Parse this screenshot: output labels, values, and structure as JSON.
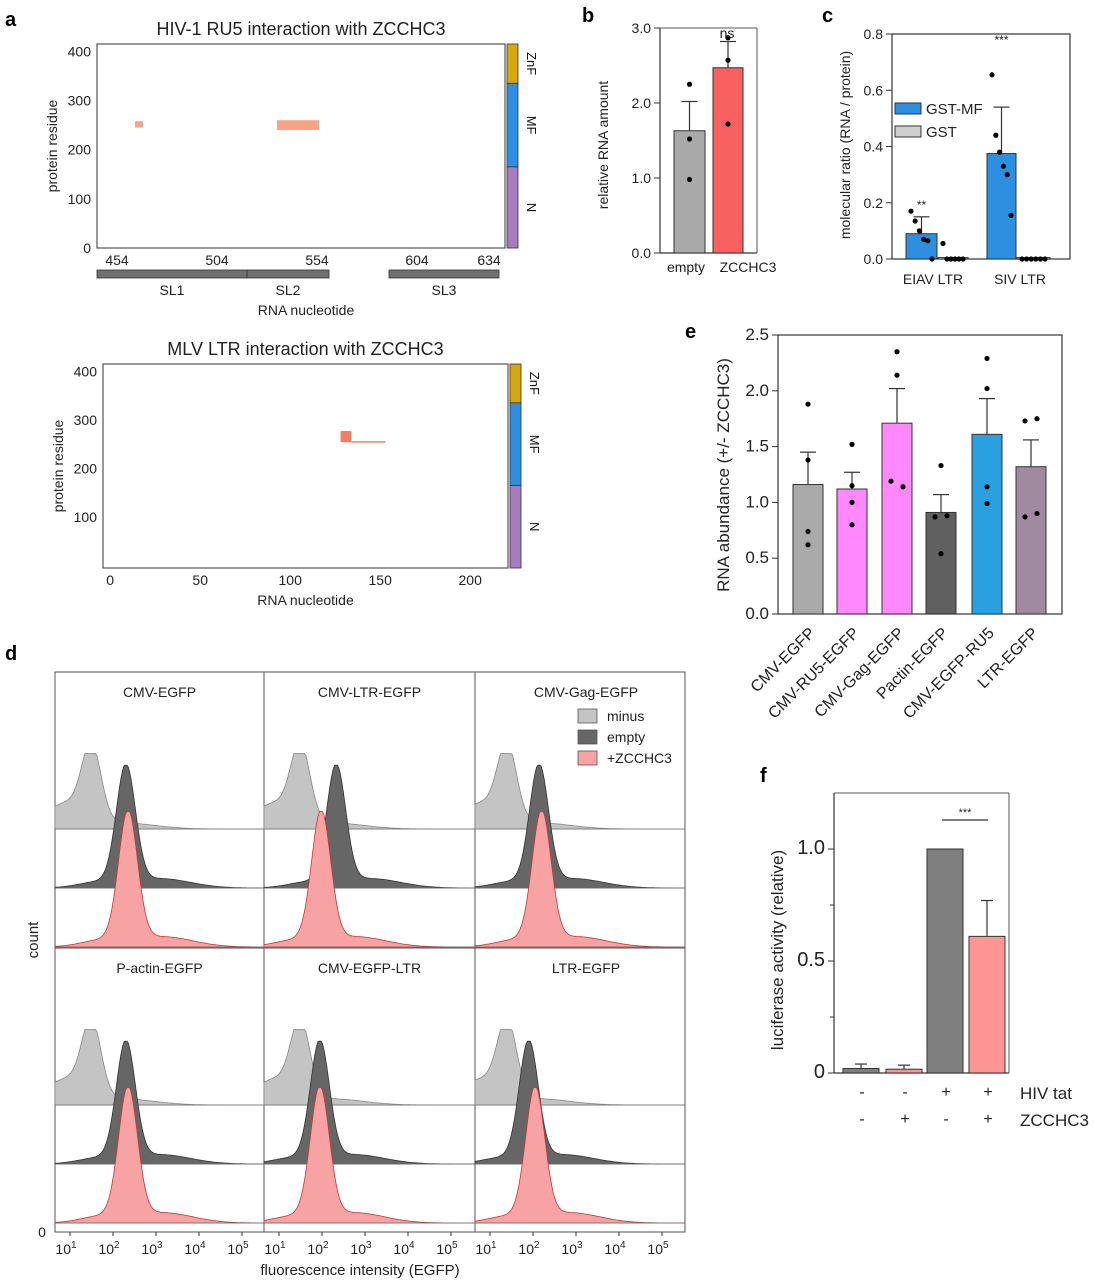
{
  "panel_letters": [
    "a",
    "b",
    "c",
    "d",
    "e",
    "f"
  ],
  "chart_data": [
    {
      "id": "a1",
      "type": "heatmap",
      "title": "HIV-1 RU5 interaction with ZCCHC3",
      "xlabel": "RNA nucleotide",
      "ylabel": "protein residue",
      "xticks": [
        454,
        504,
        554,
        604,
        634
      ],
      "yticks": [
        0,
        100,
        200,
        300,
        400
      ],
      "xlim": [
        444,
        648
      ],
      "ylim": [
        0,
        415
      ],
      "interactions": [
        {
          "x": [
            463,
            467
          ],
          "y": [
            245,
            258
          ]
        },
        {
          "x": [
            534,
            555
          ],
          "y": [
            240,
            260
          ]
        }
      ],
      "rna_regions": [
        {
          "label": "SL1",
          "range": [
            444,
            519
          ]
        },
        {
          "label": "SL2",
          "range": [
            519,
            560
          ]
        },
        {
          "label": "SL3",
          "range": [
            590,
            645
          ]
        }
      ],
      "domains": [
        {
          "label": "ZnF",
          "range": [
            335,
            415
          ],
          "color": "#d4a80e"
        },
        {
          "label": "MF",
          "range": [
            165,
            335
          ],
          "color": "#2e8ee0"
        },
        {
          "label": "N",
          "range": [
            0,
            165
          ],
          "color": "#a87bbf"
        }
      ],
      "interaction_color": "#f8a488"
    },
    {
      "id": "a2",
      "type": "heatmap",
      "title": "MLV LTR interaction with ZCCHC3",
      "xlabel": "RNA nucleotide",
      "ylabel": "protein residue",
      "xticks": [
        0,
        50,
        100,
        150,
        200
      ],
      "yticks": [
        100,
        200,
        300,
        400
      ],
      "xlim": [
        -4,
        221
      ],
      "ylim": [
        -5,
        415
      ],
      "interactions": [
        {
          "x": [
            128,
            134
          ],
          "y": [
            254,
            277
          ]
        },
        {
          "x": [
            134,
            153
          ],
          "y": [
            253,
            256
          ]
        }
      ],
      "domains": [
        {
          "label": "ZnF",
          "range": [
            335,
            415
          ],
          "color": "#d4a80e"
        },
        {
          "label": "MF",
          "range": [
            165,
            335
          ],
          "color": "#2e8ee0"
        },
        {
          "label": "N",
          "range": [
            -5,
            165
          ],
          "color": "#a87bbf"
        }
      ],
      "interaction_color": "#f47e62"
    },
    {
      "id": "b",
      "type": "bar",
      "ylabel": "relative RNA amount",
      "ylim": [
        0,
        3.0
      ],
      "yticks": [
        "0.0",
        "1.0",
        "2.0",
        "3.0"
      ],
      "categories": [
        "empty",
        "ZCCHC3"
      ],
      "values": [
        1.63,
        2.47
      ],
      "error_upper": [
        2.02,
        2.82
      ],
      "points": [
        [
          2.25,
          1.52,
          0.98
        ],
        [
          2.87,
          2.57,
          1.72
        ]
      ],
      "colors": [
        "#a9a9a9",
        "#f96060"
      ],
      "annotation": "ns"
    },
    {
      "id": "c",
      "type": "bar",
      "ylabel": "molecular ratio (RNA / protein)",
      "ylim": [
        0,
        0.8
      ],
      "yticks": [
        "0.0",
        "0.2",
        "0.4",
        "0.6",
        "0.8"
      ],
      "categories": [
        "EIAV LTR",
        "SIV LTR"
      ],
      "series": [
        {
          "name": "GST-MF",
          "color": "#2e8ee0",
          "values": [
            0.09,
            0.375
          ],
          "error_upper": [
            0.15,
            0.54
          ],
          "points": [
            [
              0.17,
              0.135,
              0.1,
              0.07,
              0.065,
              0.0
            ],
            [
              0.655,
              0.44,
              0.38,
              0.33,
              0.3,
              0.155
            ]
          ]
        },
        {
          "name": "GST",
          "color": "#cfcfcf",
          "values": [
            0.005,
            0.005
          ],
          "error_upper": [
            0.008,
            0.008
          ],
          "points": [
            [
              0.055,
              0,
              0,
              0,
              0,
              0
            ],
            [
              0,
              0,
              0,
              0,
              0,
              0
            ]
          ]
        }
      ],
      "annotations": [
        "**",
        "***"
      ],
      "legend": "upper-left"
    },
    {
      "id": "d",
      "type": "area",
      "xlabel": "fluorescence intensity (EGFP)",
      "ylabel": "count",
      "y_zero_label": "0",
      "xticks_log10": [
        1,
        2,
        3,
        4,
        5
      ],
      "legend": [
        {
          "name": "minus",
          "color": "#c4c4c4"
        },
        {
          "name": "empty",
          "color": "#666666"
        },
        {
          "name": "+ZCCHC3",
          "color": "#f7a3a3"
        }
      ],
      "samples": [
        {
          "title": "CMV-EGFP",
          "peaks_log10": {
            "minus": 1.5,
            "empty": 2.3,
            "+ZCCHC3": 2.35
          }
        },
        {
          "title": "CMV-LTR-EGFP",
          "peaks_log10": {
            "minus": 1.5,
            "empty": 2.33,
            "+ZCCHC3": 1.98
          }
        },
        {
          "title": "CMV-Gag-EGFP",
          "peaks_log10": {
            "minus": 1.4,
            "empty": 2.14,
            "+ZCCHC3": 2.2
          }
        },
        {
          "title": "P-actin-EGFP",
          "peaks_log10": {
            "minus": 1.5,
            "empty": 2.3,
            "+ZCCHC3": 2.35
          }
        },
        {
          "title": "CMV-EGFP-LTR",
          "peaks_log10": {
            "minus": 1.5,
            "empty": 1.95,
            "+ZCCHC3": 1.95
          }
        },
        {
          "title": "LTR-EGFP",
          "peaks_log10": {
            "minus": 1.4,
            "empty": 1.9,
            "+ZCCHC3": 2.05
          }
        }
      ]
    },
    {
      "id": "e",
      "type": "bar",
      "ylabel": "RNA abundance (+/- ZCCHC3)",
      "ylim": [
        0,
        2.5
      ],
      "yticks": [
        "0.0",
        "0.5",
        "1.0",
        "1.5",
        "2.0",
        "2.5"
      ],
      "categories": [
        "CMV-EGFP",
        "CMV-RU5-EGFP",
        "CMV-Gag-EGFP",
        "Pactin-EGFP",
        "CMV-EGFP-RU5",
        "LTR-EGFP"
      ],
      "values": [
        1.16,
        1.12,
        1.71,
        0.91,
        1.61,
        1.32
      ],
      "error_upper": [
        1.45,
        1.27,
        2.02,
        1.07,
        1.93,
        1.56
      ],
      "points": [
        [
          1.88,
          1.38,
          0.74,
          0.62
        ],
        [
          1.52,
          1.15,
          1.0,
          0.8
        ],
        [
          2.35,
          2.14,
          1.19,
          1.14
        ],
        [
          1.33,
          0.88,
          0.87,
          0.54
        ],
        [
          2.29,
          2.02,
          1.14,
          0.99
        ],
        [
          1.73,
          1.75,
          0.87,
          0.9
        ]
      ],
      "colors": [
        "#aaaaaa",
        "#ff88ff",
        "#ff88ff",
        "#606060",
        "#29a0e0",
        "#a08aa0"
      ]
    },
    {
      "id": "f",
      "type": "bar",
      "ylabel": "luciferase activity (relative)",
      "ylim": [
        0,
        1.25
      ],
      "yticks": [
        "0",
        "0.5",
        "1.0"
      ],
      "values": [
        0.02,
        0.017,
        1.0,
        0.61
      ],
      "error_upper": [
        0.04,
        0.035,
        1.0,
        0.77
      ],
      "colors": [
        "#7f7f7f",
        "#ff9494",
        "#7f7f7f",
        "#ff9494"
      ],
      "conditions": [
        {
          "label": "HIV tat",
          "signs": [
            "-",
            "-",
            "+",
            "+"
          ]
        },
        {
          "label": "ZCCHC3",
          "signs": [
            "-",
            "+",
            "-",
            "+"
          ]
        }
      ],
      "annotation": "***"
    }
  ]
}
